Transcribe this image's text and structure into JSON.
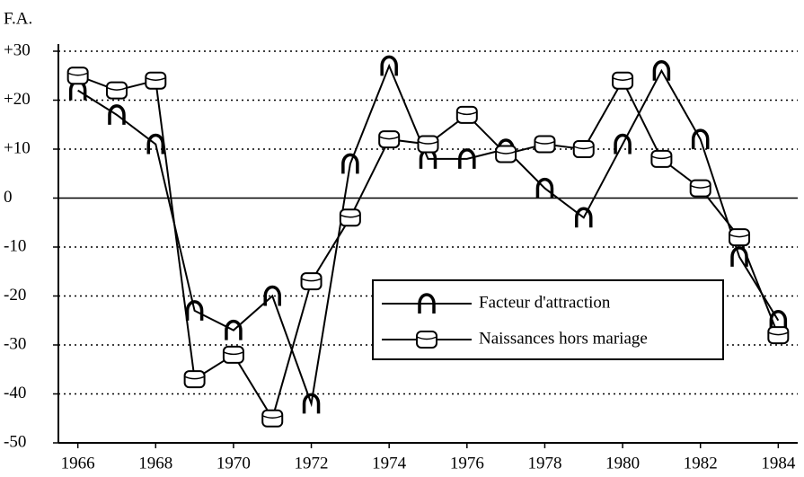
{
  "chart_data": {
    "type": "line",
    "ylabel": "F.A.",
    "x": [
      1966,
      1967,
      1968,
      1969,
      1970,
      1971,
      1972,
      1973,
      1974,
      1975,
      1976,
      1977,
      1978,
      1979,
      1980,
      1981,
      1982,
      1983,
      1984
    ],
    "series": [
      {
        "name": "Facteur d'attraction",
        "color": "#000000",
        "marker": "horseshoe",
        "values": [
          22,
          17,
          11,
          -23,
          -27,
          -20,
          -42,
          7,
          27,
          8,
          8,
          10,
          2,
          -4,
          11,
          26,
          12,
          -12,
          -25
        ]
      },
      {
        "name": "Naissances hors mariage",
        "color": "#000000",
        "marker": "cylinder",
        "values": [
          25,
          22,
          24,
          -37,
          -32,
          -45,
          -17,
          -4,
          12,
          11,
          17,
          9,
          11,
          10,
          24,
          8,
          2,
          -8,
          -28
        ]
      }
    ],
    "xlim": [
      1965.5,
      1984.5
    ],
    "xticks": [
      1966,
      1968,
      1970,
      1972,
      1974,
      1976,
      1978,
      1980,
      1982,
      1984
    ],
    "ylim": [
      -50,
      30
    ],
    "yticks": [
      -50,
      -40,
      -30,
      -20,
      -10,
      0,
      {
        "value": 10,
        "label": "+10"
      },
      {
        "value": 20,
        "label": "+20"
      },
      {
        "value": 30,
        "label": "+30"
      }
    ],
    "grid": true,
    "legend": "lower-right"
  }
}
